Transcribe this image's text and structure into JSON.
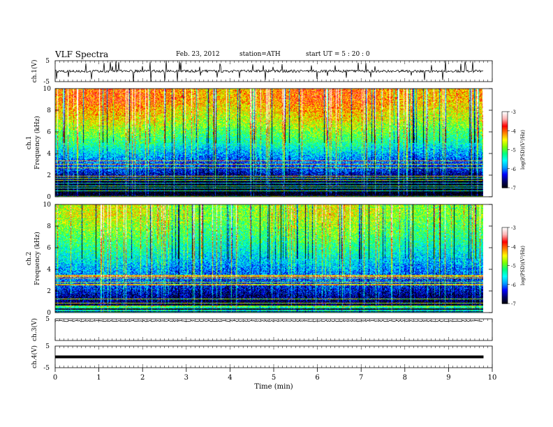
{
  "header": {
    "title": "VLF  Spectra",
    "date": "Feb. 23, 2012",
    "station": "station=ATH",
    "start_time": "start  UT  =   5  : 20 : 0"
  },
  "chart_data": [
    {
      "type": "line",
      "panel": "ch1-waveform",
      "ylabel": "ch.1(V)",
      "ylim": [
        -5,
        5
      ],
      "y_ticks": [
        "5",
        "-5"
      ],
      "x": [
        0,
        1,
        2,
        3,
        4,
        5,
        6,
        7,
        8,
        9,
        9.8
      ],
      "series": [
        {
          "values": [
            0,
            0,
            0,
            0,
            0,
            0,
            0,
            0,
            0,
            0,
            0
          ]
        }
      ]
    },
    {
      "type": "heatmap",
      "panel": "ch1-spectrogram",
      "ylabel": "ch.1\nFrequency  (kHz)",
      "ylim": [
        0,
        10
      ],
      "y_ticks": [
        "0",
        "2",
        "4",
        "6",
        "8",
        "10"
      ],
      "x_range": [
        0,
        9.8
      ],
      "colorbar": {
        "label": "log(PSD)(V²/Hz)",
        "ticks": [
          "-3",
          "-4",
          "-5",
          "-6",
          "-7"
        ],
        "range": [
          -7,
          -3
        ]
      },
      "levels_by_frequency_khz": {
        "0.5": -7.0,
        "1.5": -6.9,
        "2.5": -6.2,
        "3.5": -6.0,
        "5": -5.3,
        "7": -4.6,
        "9": -4.1
      }
    },
    {
      "type": "heatmap",
      "panel": "ch2-spectrogram",
      "ylabel": "ch.2\nFrequency  (kHz)",
      "ylim": [
        0,
        10
      ],
      "y_ticks": [
        "0",
        "2",
        "4",
        "6",
        "8",
        "10"
      ],
      "x_range": [
        0,
        9.8
      ],
      "colorbar": {
        "label": "log(PSD)(V²/Hz)",
        "ticks": [
          "-3",
          "-4",
          "-5",
          "-6",
          "-7"
        ],
        "range": [
          -7,
          -3
        ]
      },
      "levels_by_frequency_khz": {
        "0.5": -6.9,
        "1.5": -6.6,
        "2.5": -6.2,
        "3.5": -6.0,
        "5": -5.6,
        "7": -5.1,
        "9": -4.7
      }
    },
    {
      "type": "line",
      "panel": "ch3-waveform",
      "ylabel": "ch.3(V)",
      "ylim": [
        -5,
        5
      ],
      "y_ticks": [
        "5"
      ],
      "x": [
        0,
        9.8
      ],
      "series": [
        {
          "values": [
            4.0,
            4.0
          ]
        }
      ]
    },
    {
      "type": "line",
      "panel": "ch4-waveform",
      "ylabel": "ch.4(V)",
      "ylim": [
        -5,
        5
      ],
      "y_ticks": [
        "5",
        "-5"
      ],
      "x": [
        0,
        9.8
      ],
      "series": [
        {
          "values": [
            0,
            0
          ]
        }
      ]
    }
  ],
  "x_axis": {
    "label": "Time  (min)",
    "range": [
      0,
      10
    ],
    "ticks": [
      "0",
      "1",
      "2",
      "3",
      "4",
      "5",
      "6",
      "7",
      "8",
      "9",
      "10"
    ]
  },
  "colors": {
    "colormap": [
      "#000000",
      "#000066",
      "#0000ff",
      "#00a0ff",
      "#00ffff",
      "#00ff80",
      "#80ff00",
      "#ffff00",
      "#ff8000",
      "#ff0000",
      "#ffb0b0",
      "#ffffff"
    ]
  }
}
